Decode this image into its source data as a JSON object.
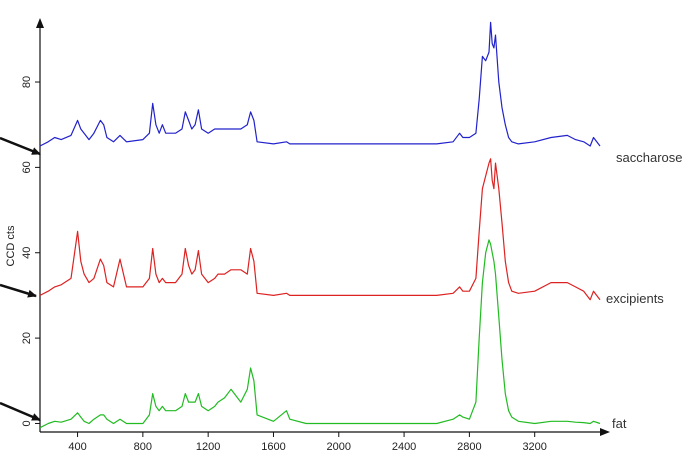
{
  "chart_data": {
    "type": "line",
    "title": "",
    "xlabel": "",
    "ylabel": "CCD cts",
    "xlim": [
      170,
      3600
    ],
    "ylim": [
      -2,
      95
    ],
    "x_ticks": [
      400,
      800,
      1200,
      1600,
      2000,
      2400,
      2800,
      3200
    ],
    "y_ticks": [
      0,
      20,
      40,
      60,
      80
    ],
    "grid": false,
    "legend": "none",
    "series": [
      {
        "name": "saccharose",
        "color": "#2222cc",
        "x": [
          170,
          220,
          260,
          300,
          360,
          400,
          420,
          440,
          470,
          500,
          540,
          560,
          580,
          620,
          660,
          700,
          800,
          840,
          860,
          880,
          900,
          920,
          940,
          960,
          1000,
          1040,
          1060,
          1080,
          1100,
          1120,
          1140,
          1160,
          1200,
          1240,
          1260,
          1300,
          1340,
          1400,
          1440,
          1460,
          1480,
          1500,
          1600,
          1680,
          1700,
          1800,
          2000,
          2400,
          2600,
          2700,
          2740,
          2760,
          2800,
          2840,
          2860,
          2880,
          2900,
          2920,
          2930,
          2940,
          2950,
          2960,
          2980,
          3000,
          3020,
          3040,
          3060,
          3100,
          3200,
          3300,
          3400,
          3450,
          3500,
          3540,
          3560,
          3600
        ],
        "values": [
          65,
          66,
          67,
          66.5,
          67.5,
          71,
          69,
          68,
          66.5,
          68,
          71,
          70,
          67,
          66,
          67.5,
          66,
          66.5,
          68,
          75,
          70,
          68,
          70,
          68,
          68,
          68,
          69,
          73,
          71,
          69,
          70,
          73.5,
          69,
          68,
          69,
          69,
          69,
          69,
          69,
          70,
          73,
          71,
          66,
          65.5,
          66,
          65.5,
          65.5,
          65.5,
          65.5,
          65.5,
          66,
          68,
          67,
          67,
          68,
          76,
          86,
          85,
          87,
          94,
          89,
          88,
          91,
          80,
          74,
          70,
          67,
          66,
          65.5,
          66,
          67,
          67.5,
          66.5,
          66,
          65,
          67,
          65
        ]
      },
      {
        "name": "excipients",
        "color": "#dd2222",
        "x": [
          170,
          220,
          260,
          300,
          360,
          400,
          420,
          440,
          470,
          500,
          540,
          560,
          580,
          620,
          660,
          700,
          800,
          840,
          860,
          880,
          900,
          920,
          940,
          960,
          1000,
          1040,
          1060,
          1080,
          1100,
          1120,
          1140,
          1160,
          1200,
          1240,
          1260,
          1300,
          1340,
          1400,
          1440,
          1460,
          1480,
          1500,
          1600,
          1680,
          1700,
          1800,
          2000,
          2400,
          2600,
          2700,
          2740,
          2760,
          2800,
          2840,
          2860,
          2880,
          2900,
          2920,
          2930,
          2940,
          2950,
          2960,
          2980,
          3000,
          3020,
          3040,
          3060,
          3100,
          3200,
          3300,
          3400,
          3450,
          3500,
          3540,
          3560,
          3600
        ],
        "values": [
          30,
          31,
          32,
          32.5,
          34,
          45,
          38,
          35,
          33,
          34,
          38.5,
          37,
          33,
          32,
          38.5,
          32,
          32,
          34,
          41,
          35,
          33,
          34,
          33,
          33,
          33,
          35,
          41,
          37,
          35,
          36,
          40.5,
          35,
          33,
          34,
          35,
          35,
          36,
          36,
          35,
          41,
          38,
          30.5,
          30,
          30.5,
          30,
          30,
          30,
          30,
          30,
          30.5,
          32,
          31,
          31,
          34,
          45,
          55,
          58,
          61,
          62,
          57,
          55,
          61,
          55,
          47,
          38,
          33,
          31,
          30.5,
          31,
          33,
          33,
          32,
          31,
          29,
          31,
          29
        ]
      },
      {
        "name": "fat",
        "color": "#22bb22",
        "x": [
          170,
          220,
          260,
          300,
          360,
          400,
          420,
          440,
          470,
          500,
          540,
          560,
          580,
          620,
          660,
          700,
          800,
          840,
          860,
          880,
          900,
          920,
          940,
          960,
          1000,
          1040,
          1060,
          1080,
          1100,
          1120,
          1140,
          1160,
          1200,
          1240,
          1260,
          1300,
          1340,
          1400,
          1440,
          1460,
          1480,
          1500,
          1600,
          1680,
          1700,
          1800,
          2000,
          2400,
          2600,
          2700,
          2740,
          2760,
          2800,
          2840,
          2860,
          2880,
          2900,
          2920,
          2930,
          2940,
          2950,
          2960,
          2980,
          3000,
          3020,
          3040,
          3060,
          3100,
          3200,
          3300,
          3400,
          3450,
          3500,
          3540,
          3560,
          3600
        ],
        "values": [
          -1,
          0,
          0.5,
          0.3,
          1,
          2.5,
          1.5,
          0.5,
          0,
          1,
          2,
          2,
          1,
          0,
          1,
          0,
          0,
          2,
          7,
          4,
          3,
          4,
          3,
          3,
          3,
          4,
          7,
          5,
          5,
          5,
          7,
          4,
          3,
          4,
          5,
          6,
          8,
          5,
          8,
          13,
          10,
          2,
          0.5,
          3,
          1,
          0,
          0,
          0,
          0,
          1,
          2,
          1.5,
          1,
          5,
          20,
          33,
          40,
          43,
          42,
          40,
          38,
          35,
          25,
          15,
          7,
          3,
          1.5,
          0.5,
          0,
          0.5,
          0.5,
          0.3,
          0.2,
          0,
          0.5,
          0
        ]
      }
    ]
  }
}
